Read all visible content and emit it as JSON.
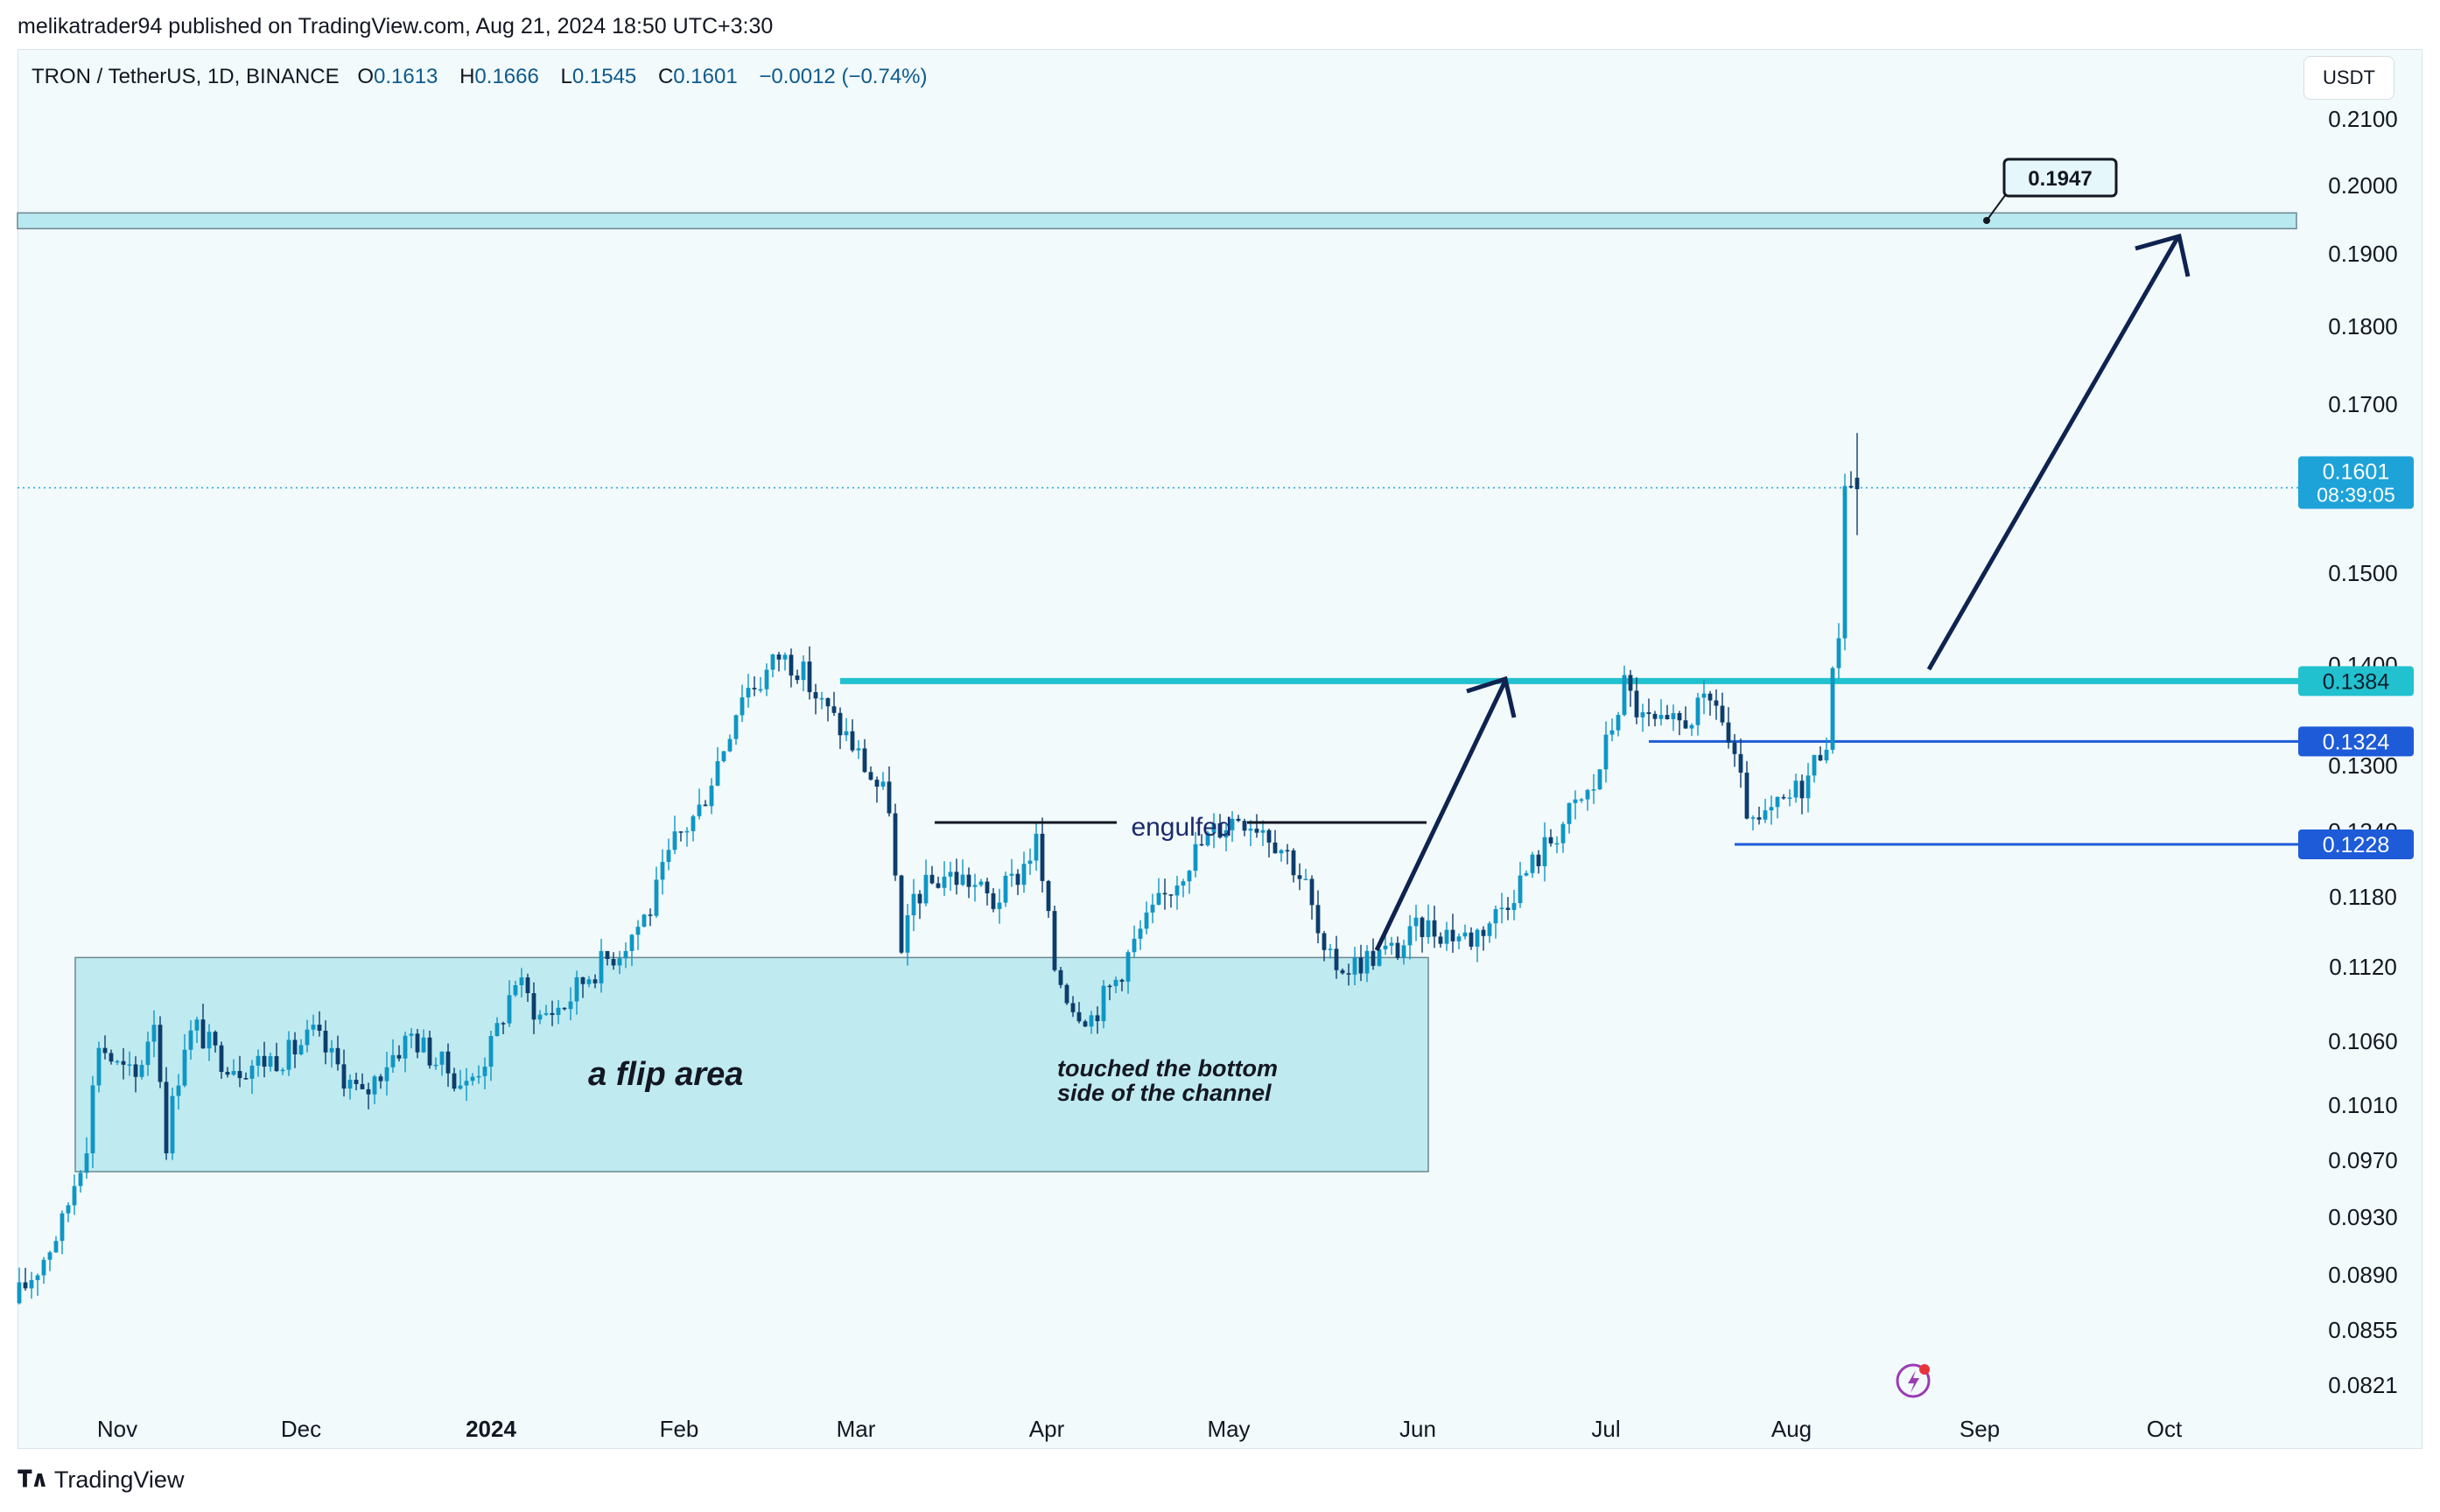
{
  "header": {
    "attribution": "melikatrader94 published on TradingView.com, Aug 21, 2024 18:50 UTC+3:30"
  },
  "legend": {
    "symbol": "TRON / TetherUS, 1D, BINANCE",
    "open_label": "O",
    "open": "0.1613",
    "high_label": "H",
    "high": "0.1666",
    "low_label": "L",
    "low": "0.1545",
    "close_label": "C",
    "close": "0.1601",
    "change": "−0.0012 (−0.74%)"
  },
  "currency": "USDT",
  "footer": {
    "brand": "TradingView"
  },
  "colors": {
    "up": "#0f96c4",
    "down": "#0d3d6b",
    "zone": "#bfeaf0",
    "level_cyan": "#22c1cf",
    "level_blue": "#1e5bd8",
    "arrow": "#0f2350"
  },
  "chart_data": {
    "type": "candlestick",
    "title": "TRON / TetherUS, 1D, BINANCE",
    "y_ticks": [
      "0.2100",
      "0.2000",
      "0.1900",
      "0.1800",
      "0.1700",
      "0.1500",
      "0.1400",
      "0.1300",
      "0.1240",
      "0.1180",
      "0.1120",
      "0.1060",
      "0.1010",
      "0.0970",
      "0.0930",
      "0.0890",
      "0.0855",
      "0.0821"
    ],
    "x_ticks": [
      "Nov",
      "Dec",
      "2024",
      "Feb",
      "Mar",
      "Apr",
      "May",
      "Jun",
      "Jul",
      "Aug",
      "Sep",
      "Oct"
    ],
    "price_tags": [
      {
        "label": "0.1601",
        "sub": "08:39:05",
        "kind": "last"
      },
      {
        "label": "0.1384",
        "kind": "cyan"
      },
      {
        "label": "0.1324",
        "kind": "blue"
      },
      {
        "label": "0.1228",
        "kind": "blue"
      }
    ],
    "levels": [
      {
        "value": 0.1384,
        "style": "cyan-thick"
      },
      {
        "value": 0.1324,
        "style": "blue",
        "from": "2024-07-18"
      },
      {
        "value": 0.1228,
        "style": "blue",
        "from": "2024-08-01"
      },
      {
        "value": 0.1947,
        "style": "target-zone"
      }
    ],
    "target_label": "0.1947",
    "last_price": 0.1601,
    "zone": {
      "from": "2023-11-03",
      "to": "2024-06-12",
      "high": 0.1128,
      "low": 0.0962
    },
    "annotations": [
      "a flip area",
      "engulfed",
      "touched the bottom",
      "side of the channel"
    ],
    "close_path": [
      [
        "2023-10-26",
        0.0872
      ],
      [
        "2023-10-30",
        0.0895
      ],
      [
        "2023-11-03",
        0.0925
      ],
      [
        "2023-11-07",
        0.0985
      ],
      [
        "2023-11-09",
        0.106
      ],
      [
        "2023-11-12",
        0.104
      ],
      [
        "2023-11-15",
        0.103
      ],
      [
        "2023-11-18",
        0.108
      ],
      [
        "2023-11-20",
        0.0985
      ],
      [
        "2023-11-23",
        0.106
      ],
      [
        "2023-11-25",
        0.107
      ],
      [
        "2023-11-28",
        0.105
      ],
      [
        "2023-12-02",
        0.104
      ],
      [
        "2023-12-06",
        0.1045
      ],
      [
        "2023-12-10",
        0.105
      ],
      [
        "2023-12-14",
        0.1065
      ],
      [
        "2023-12-18",
        0.104
      ],
      [
        "2023-12-22",
        0.1015
      ],
      [
        "2023-12-26",
        0.1045
      ],
      [
        "2023-12-30",
        0.1065
      ],
      [
        "2024-01-03",
        0.1045
      ],
      [
        "2024-01-08",
        0.1025
      ],
      [
        "2024-01-12",
        0.1055
      ],
      [
        "2024-01-16",
        0.111
      ],
      [
        "2024-01-20",
        0.108
      ],
      [
        "2024-01-24",
        0.109
      ],
      [
        "2024-01-28",
        0.1115
      ],
      [
        "2024-02-02",
        0.1135
      ],
      [
        "2024-02-07",
        0.117
      ],
      [
        "2024-02-11",
        0.123
      ],
      [
        "2024-02-15",
        0.126
      ],
      [
        "2024-02-19",
        0.132
      ],
      [
        "2024-02-22",
        0.1375
      ],
      [
        "2024-02-25",
        0.1385
      ],
      [
        "2024-02-28",
        0.141
      ],
      [
        "2024-03-02",
        0.14
      ],
      [
        "2024-03-06",
        0.136
      ],
      [
        "2024-03-10",
        0.133
      ],
      [
        "2024-03-14",
        0.129
      ],
      [
        "2024-03-17",
        0.1265
      ],
      [
        "2024-03-19",
        0.1125
      ],
      [
        "2024-03-21",
        0.118
      ],
      [
        "2024-03-26",
        0.12
      ],
      [
        "2024-03-30",
        0.1195
      ],
      [
        "2024-04-03",
        0.1175
      ],
      [
        "2024-04-07",
        0.12
      ],
      [
        "2024-04-10",
        0.123
      ],
      [
        "2024-04-13",
        0.112
      ],
      [
        "2024-04-16",
        0.109
      ],
      [
        "2024-04-19",
        0.108
      ],
      [
        "2024-04-23",
        0.111
      ],
      [
        "2024-04-27",
        0.115
      ],
      [
        "2024-05-01",
        0.118
      ],
      [
        "2024-05-05",
        0.1215
      ],
      [
        "2024-05-09",
        0.124
      ],
      [
        "2024-05-13",
        0.1255
      ],
      [
        "2024-05-17",
        0.1245
      ],
      [
        "2024-05-21",
        0.122
      ],
      [
        "2024-05-24",
        0.119
      ],
      [
        "2024-05-27",
        0.1125
      ],
      [
        "2024-05-31",
        0.112
      ],
      [
        "2024-06-04",
        0.113
      ],
      [
        "2024-06-08",
        0.1135
      ],
      [
        "2024-06-12",
        0.1155
      ],
      [
        "2024-06-16",
        0.115
      ],
      [
        "2024-06-20",
        0.1145
      ],
      [
        "2024-06-24",
        0.1165
      ],
      [
        "2024-06-28",
        0.1195
      ],
      [
        "2024-07-02",
        0.1225
      ],
      [
        "2024-07-06",
        0.1255
      ],
      [
        "2024-07-10",
        0.128
      ],
      [
        "2024-07-13",
        0.134
      ],
      [
        "2024-07-15",
        0.138
      ],
      [
        "2024-07-18",
        0.1345
      ],
      [
        "2024-07-22",
        0.1335
      ],
      [
        "2024-07-26",
        0.135
      ],
      [
        "2024-07-30",
        0.1365
      ],
      [
        "2024-08-02",
        0.13
      ],
      [
        "2024-08-05",
        0.124
      ],
      [
        "2024-08-08",
        0.1255
      ],
      [
        "2024-08-11",
        0.127
      ],
      [
        "2024-08-14",
        0.129
      ],
      [
        "2024-08-17",
        0.133
      ],
      [
        "2024-08-19",
        0.144
      ],
      [
        "2024-08-20",
        0.1613
      ],
      [
        "2024-08-21",
        0.1601
      ]
    ]
  }
}
